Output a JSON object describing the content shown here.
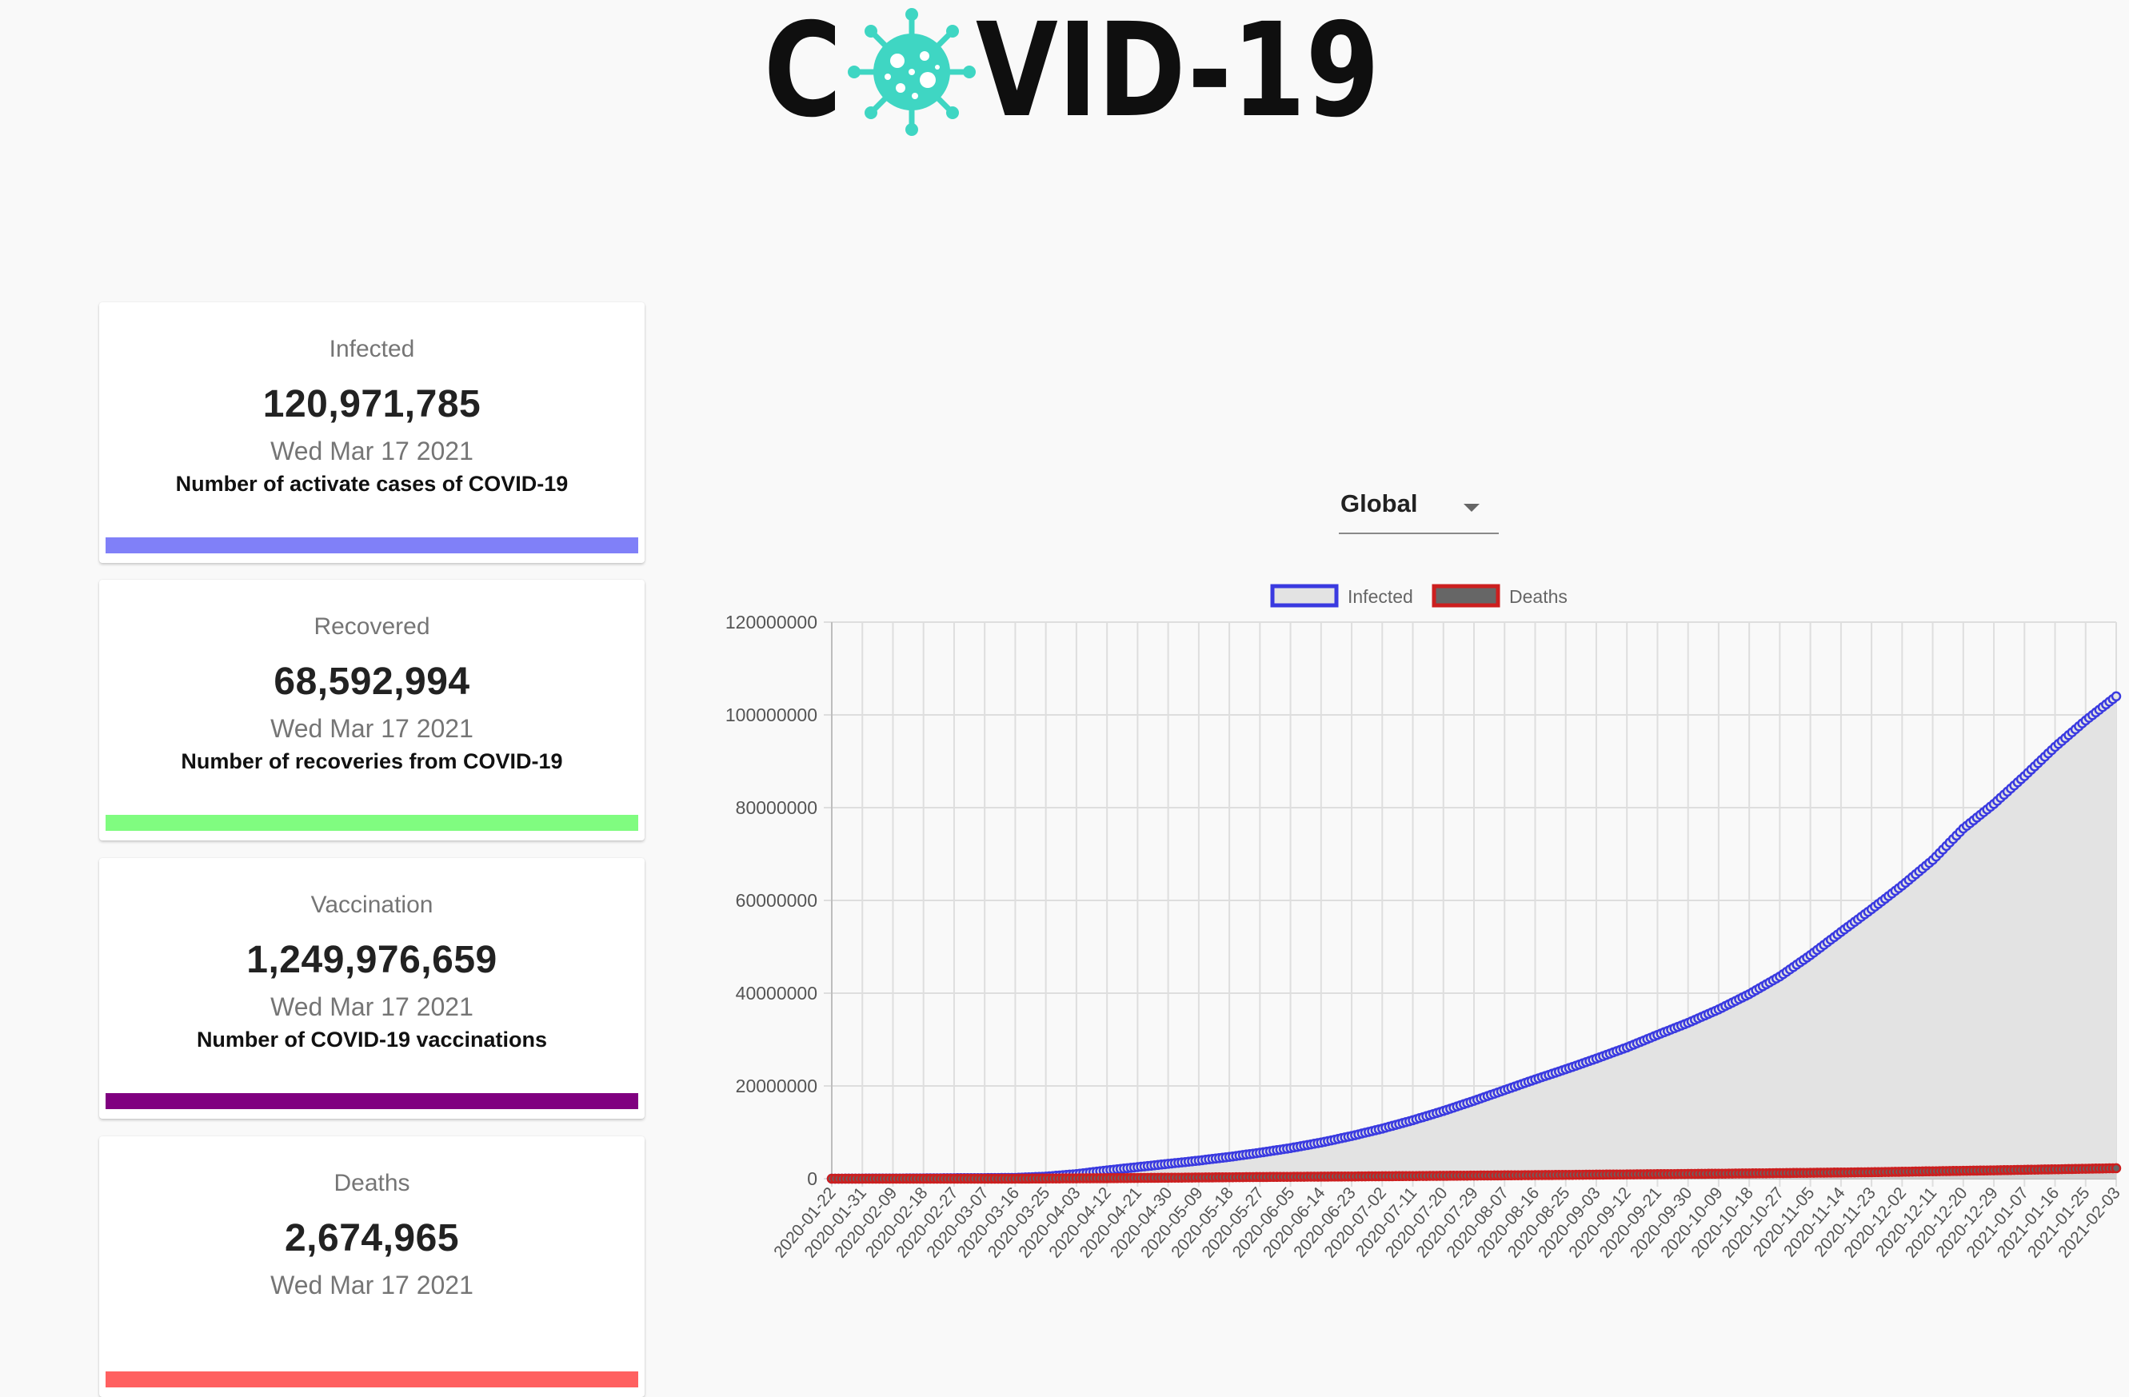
{
  "header": {
    "logo_text": "COVID-19"
  },
  "cards": [
    {
      "title": "Infected",
      "value": "120,971,785",
      "date": "Wed Mar 17 2021",
      "description": "Number of activate cases of COVID-19",
      "bar_color": "#8080f8"
    },
    {
      "title": "Recovered",
      "value": "68,592,994",
      "date": "Wed Mar 17 2021",
      "description": "Number of recoveries from COVID-19",
      "bar_color": "#80fc80"
    },
    {
      "title": "Vaccination",
      "value": "1,249,976,659",
      "date": "Wed Mar 17 2021",
      "description": "Number of COVID-19 vaccinations",
      "bar_color": "#800080"
    },
    {
      "title": "Deaths",
      "value": "2,674,965",
      "date": "Wed Mar 17 2021",
      "description": "",
      "bar_color": "#ff6060"
    }
  ],
  "country_select": {
    "selected": "Global"
  },
  "chart_data": {
    "type": "line",
    "title": "",
    "xlabel": "",
    "ylabel": "",
    "ylim": [
      0,
      120000000
    ],
    "yticks": [
      0,
      20000000,
      40000000,
      60000000,
      80000000,
      100000000,
      120000000
    ],
    "grid": true,
    "legend_position": "top",
    "x_start": "2020-01-22",
    "x_end": "2021-02-03",
    "x_tick_labels": [
      "2020-01-22",
      "2020-01-31",
      "2020-02-09",
      "2020-02-18",
      "2020-02-27",
      "2020-03-07",
      "2020-03-16",
      "2020-03-25",
      "2020-04-03",
      "2020-04-12",
      "2020-04-21",
      "2020-04-30",
      "2020-05-09",
      "2020-05-18",
      "2020-05-27",
      "2020-06-05",
      "2020-06-14",
      "2020-06-23",
      "2020-07-02",
      "2020-07-11",
      "2020-07-20",
      "2020-07-29",
      "2020-08-07",
      "2020-08-16",
      "2020-08-25",
      "2020-09-03",
      "2020-09-12",
      "2020-09-21",
      "2020-09-30",
      "2020-10-09",
      "2020-10-18",
      "2020-10-27",
      "2020-11-05",
      "2020-11-14",
      "2020-11-23",
      "2020-12-02",
      "2020-12-11",
      "2020-12-20",
      "2020-12-29",
      "2021-01-07",
      "2021-01-16",
      "2021-01-25",
      "2021-02-03"
    ],
    "series": [
      {
        "name": "Infected",
        "line_color": "#3a3ae0",
        "fill_color": "#e3e3e3",
        "points": [
          [
            "2020-01-22",
            0
          ],
          [
            "2020-02-18",
            75000
          ],
          [
            "2020-03-16",
            180000
          ],
          [
            "2020-03-25",
            450000
          ],
          [
            "2020-04-03",
            1000000
          ],
          [
            "2020-04-12",
            1800000
          ],
          [
            "2020-04-21",
            2500000
          ],
          [
            "2020-04-30",
            3200000
          ],
          [
            "2020-05-09",
            3900000
          ],
          [
            "2020-05-18",
            4700000
          ],
          [
            "2020-05-27",
            5600000
          ],
          [
            "2020-06-05",
            6600000
          ],
          [
            "2020-06-14",
            7800000
          ],
          [
            "2020-06-23",
            9200000
          ],
          [
            "2020-07-02",
            10800000
          ],
          [
            "2020-07-11",
            12600000
          ],
          [
            "2020-07-20",
            14600000
          ],
          [
            "2020-07-29",
            16800000
          ],
          [
            "2020-08-07",
            19100000
          ],
          [
            "2020-08-16",
            21400000
          ],
          [
            "2020-08-25",
            23600000
          ],
          [
            "2020-09-03",
            25900000
          ],
          [
            "2020-09-12",
            28300000
          ],
          [
            "2020-09-21",
            31000000
          ],
          [
            "2020-09-30",
            33600000
          ],
          [
            "2020-10-09",
            36500000
          ],
          [
            "2020-10-18",
            39800000
          ],
          [
            "2020-10-27",
            43600000
          ],
          [
            "2020-11-05",
            48200000
          ],
          [
            "2020-11-14",
            53200000
          ],
          [
            "2020-11-23",
            58100000
          ],
          [
            "2020-12-02",
            63200000
          ],
          [
            "2020-12-11",
            68700000
          ],
          [
            "2020-12-20",
            75500000
          ],
          [
            "2020-12-29",
            80800000
          ],
          [
            "2021-01-07",
            86800000
          ],
          [
            "2021-01-16",
            93100000
          ],
          [
            "2021-01-25",
            98800000
          ],
          [
            "2021-02-03",
            104000000
          ]
        ]
      },
      {
        "name": "Deaths",
        "line_color": "#cc1f1f",
        "fill_color": "#666666",
        "points": [
          [
            "2020-01-22",
            0
          ],
          [
            "2020-03-16",
            8000
          ],
          [
            "2020-04-12",
            110000
          ],
          [
            "2020-05-27",
            360000
          ],
          [
            "2020-07-11",
            570000
          ],
          [
            "2020-08-25",
            820000
          ],
          [
            "2020-10-09",
            1080000
          ],
          [
            "2020-11-23",
            1400000
          ],
          [
            "2020-12-29",
            1800000
          ],
          [
            "2021-02-03",
            2260000
          ]
        ]
      }
    ]
  }
}
